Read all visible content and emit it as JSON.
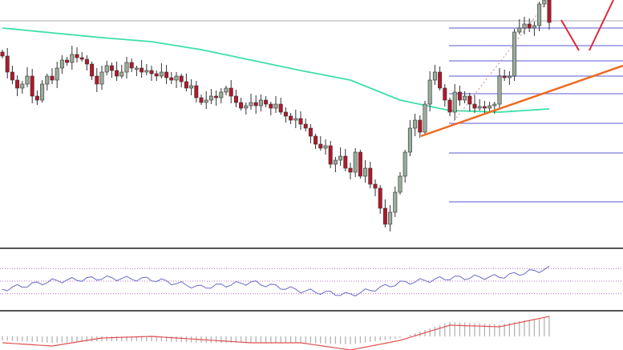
{
  "chart_data": {
    "type": "candlestick",
    "title": "",
    "xlabel": "",
    "ylabel": "",
    "grid": false,
    "colors": {
      "up": "#9aab9a",
      "down": "#b2182b",
      "sma": "#3de0a8",
      "fib": "#5a5ad6",
      "trendline": "#ee6a1e",
      "projection": "#e0283c",
      "rsi": "#6a6ac8",
      "rsi_levels": "#c070d0",
      "macd_hist": "#b4b4b4",
      "macd_signal": "#e05050",
      "reference_line": "#aaaaaa"
    },
    "closes": [
      230,
      210,
      200,
      190,
      195,
      205,
      180,
      175,
      195,
      205,
      200,
      215,
      225,
      222,
      232,
      228,
      226,
      220,
      205,
      195,
      210,
      218,
      212,
      205,
      210,
      222,
      215,
      215,
      210,
      212,
      208,
      205,
      210,
      203,
      200,
      205,
      198,
      190,
      193,
      178,
      172,
      175,
      180,
      178,
      185,
      190,
      180,
      172,
      165,
      168,
      172,
      168,
      175,
      170,
      165,
      170,
      160,
      155,
      150,
      152,
      145,
      140,
      130,
      120,
      115,
      118,
      95,
      100,
      105,
      90,
      85,
      110,
      80,
      90,
      70,
      65,
      40,
      20,
      35,
      60,
      80,
      110,
      140,
      150,
      135,
      170,
      200,
      210,
      190,
      175,
      160,
      185,
      175,
      180,
      170,
      165,
      167,
      165,
      168,
      170,
      205,
      203,
      205,
      260,
      265,
      270,
      265,
      268,
      295,
      300,
      272
    ],
    "moving_average": {
      "sample_every": 10,
      "values": [
        265,
        259,
        253,
        248,
        238,
        225,
        212,
        200,
        175,
        162,
        160,
        164
      ]
    },
    "fibonacci_levels": [
      265,
      243,
      224,
      205,
      183,
      146,
      109,
      48
    ],
    "reference_level": 274,
    "rsi": {
      "sample_every": 10,
      "levels": [
        70,
        50,
        30
      ],
      "values": [
        37,
        50,
        55,
        53,
        40,
        48,
        35,
        28,
        47,
        55,
        57,
        70
      ]
    },
    "macd": {
      "sample_every": 10,
      "histogram": [
        -5,
        -8,
        -6,
        -6,
        -8,
        -8,
        -8,
        -10,
        -2,
        18,
        15,
        25
      ],
      "signal": [
        -8,
        -12,
        -2,
        0,
        -4,
        -8,
        -8,
        -17,
        -5,
        14,
        12,
        25
      ]
    }
  }
}
